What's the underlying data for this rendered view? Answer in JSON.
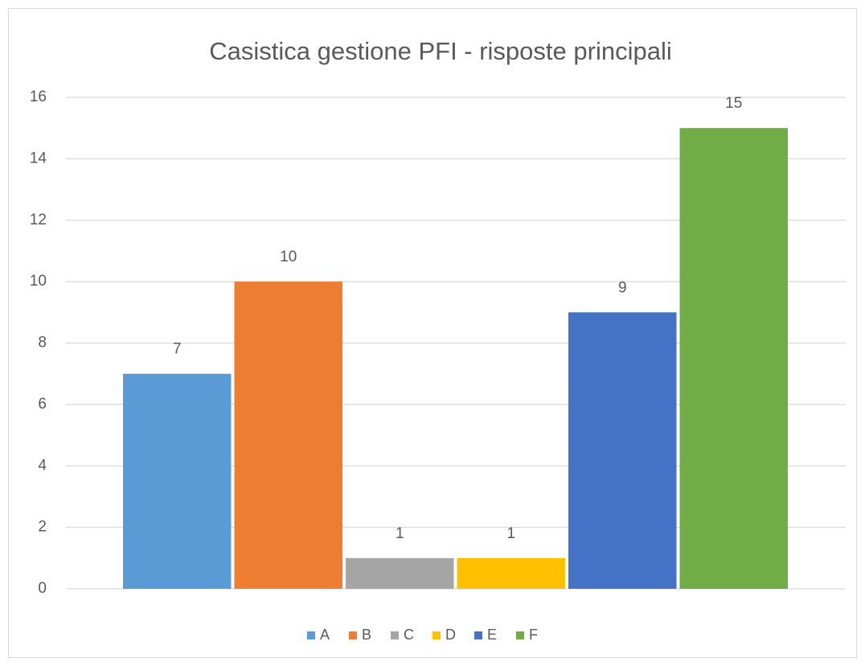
{
  "chart_data": {
    "type": "bar",
    "title": "Casistica gestione PFI - risposte principali",
    "series": [
      {
        "name": "A",
        "color": "#5b9bd5",
        "values": [
          7
        ]
      },
      {
        "name": "B",
        "color": "#ed7d31",
        "values": [
          10
        ]
      },
      {
        "name": "C",
        "color": "#a5a5a5",
        "values": [
          1
        ]
      },
      {
        "name": "D",
        "color": "#ffc000",
        "values": [
          1
        ]
      },
      {
        "name": "E",
        "color": "#4472c4",
        "values": [
          9
        ]
      },
      {
        "name": "F",
        "color": "#70ad47",
        "values": [
          15
        ]
      }
    ],
    "ylim": [
      0,
      16
    ],
    "yticks": [
      0,
      2,
      4,
      6,
      8,
      10,
      12,
      14,
      16
    ],
    "grid": true,
    "legend": "bottom"
  }
}
